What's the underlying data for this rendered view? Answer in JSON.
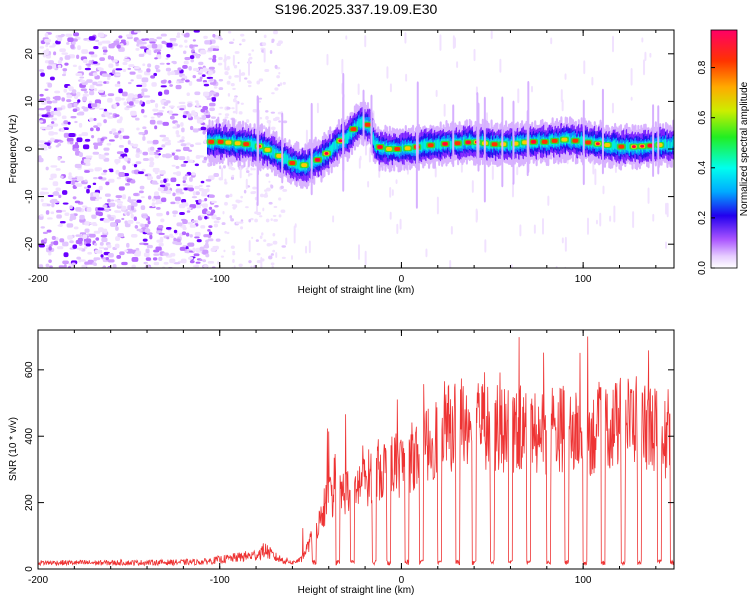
{
  "figure_title": "S196.2025.337.19.09.E30",
  "chart_data": [
    {
      "type": "heatmap",
      "name": "spectrogram",
      "title": "S196.2025.337.19.09.E30",
      "xlabel": "Height of straight line (km)",
      "ylabel": "Frequency (Hz)",
      "xlim": [
        -200,
        150
      ],
      "ylim": [
        -25,
        25
      ],
      "xticks": [
        -200,
        -100,
        0,
        100
      ],
      "yticks": [
        -20,
        -10,
        0,
        10,
        20
      ],
      "colorbar": {
        "label": "Normalized spectral amplitude",
        "range": [
          0,
          0.95
        ],
        "ticks": [
          "0.0",
          "0.2",
          "0.4",
          "0.6",
          "0.8"
        ],
        "tick_values": [
          0.0,
          0.2,
          0.4,
          0.6,
          0.8
        ]
      },
      "trace": {
        "x": [
          -107,
          -100,
          -90,
          -80,
          -72,
          -65,
          -60,
          -55,
          -50,
          -45,
          -40,
          -35,
          -30,
          -25,
          -22,
          -18,
          -15,
          -10,
          -5,
          0,
          10,
          20,
          30,
          40,
          50,
          60,
          70,
          80,
          90,
          100,
          110,
          120,
          130,
          140,
          150
        ],
        "freq": [
          1.5,
          1.5,
          1.2,
          0.8,
          -0.5,
          -2.0,
          -3.0,
          -3.5,
          -3.0,
          -2.0,
          -0.5,
          1.5,
          2.5,
          5.0,
          5.5,
          5.0,
          1.0,
          0.0,
          0.0,
          0.0,
          0.5,
          1.0,
          1.2,
          1.5,
          1.0,
          1.0,
          1.5,
          1.5,
          2.0,
          1.5,
          1.0,
          0.5,
          0.5,
          0.8,
          1.0
        ]
      }
    },
    {
      "type": "line",
      "name": "snr",
      "xlabel": "Height of straight line (km)",
      "ylabel": "SNR (10 * v/v)",
      "xlim": [
        -200,
        150
      ],
      "ylim": [
        0,
        720
      ],
      "xticks": [
        -200,
        -100,
        0,
        100
      ],
      "yticks": [
        0,
        200,
        400,
        600
      ],
      "color": "#ee3333",
      "series": [
        {
          "name": "SNR",
          "x": [
            -200,
            -150,
            -110,
            -80,
            -75,
            -70,
            -65,
            -60,
            -55,
            -50,
            -45,
            -40,
            -35,
            -30,
            -25,
            -20,
            -15,
            -10,
            -5,
            0,
            5,
            10,
            15,
            20,
            25,
            30,
            35,
            40,
            45,
            50,
            55,
            60,
            65,
            70,
            75,
            80,
            85,
            90,
            95,
            100,
            105,
            110,
            115,
            120,
            125,
            130,
            135,
            140,
            145,
            150
          ],
          "y": [
            18,
            18,
            20,
            40,
            55,
            35,
            25,
            20,
            30,
            90,
            150,
            230,
            240,
            250,
            260,
            280,
            310,
            320,
            330,
            330,
            350,
            380,
            400,
            420,
            440,
            460,
            480,
            470,
            460,
            450,
            440,
            430,
            440,
            440,
            440,
            430,
            440,
            450,
            430,
            420,
            430,
            440,
            450,
            460,
            470,
            480,
            460,
            440,
            420,
            400
          ],
          "dips_x": [
            -48,
            -35,
            -27,
            -15,
            -7,
            3,
            11,
            21,
            31,
            40,
            50,
            60,
            70,
            81,
            91,
            101,
            111,
            122,
            131,
            142,
            149
          ]
        }
      ]
    }
  ],
  "colors": {
    "trace": "#ee3333",
    "axis": "#000000"
  }
}
